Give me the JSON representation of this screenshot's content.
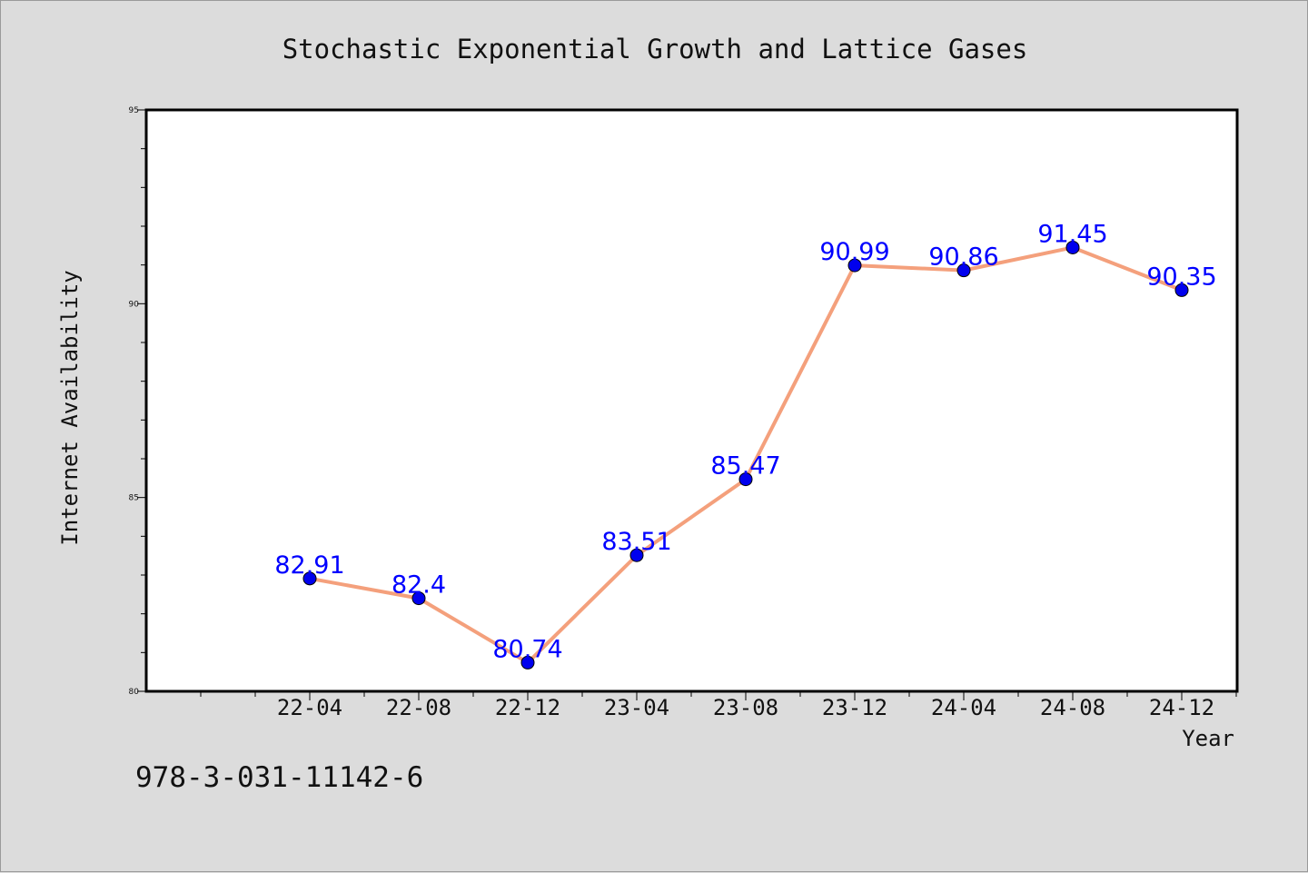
{
  "chart_data": {
    "type": "line",
    "title": "Stochastic Exponential Growth and Lattice Gases",
    "xlabel": "Year",
    "ylabel": "Internet Availability",
    "x": [
      "22-04",
      "22-08",
      "22-12",
      "23-04",
      "23-08",
      "23-12",
      "24-04",
      "24-08",
      "24-12"
    ],
    "series": [
      {
        "values": [
          82.91,
          82.4,
          80.74,
          83.51,
          85.47,
          90.99,
          90.86,
          91.45,
          90.35
        ],
        "data_labels": [
          "82.91",
          "82.4",
          "80.74",
          "83.51",
          "85.47",
          "90.99",
          "90.86",
          "91.45",
          "90.35"
        ]
      }
    ],
    "ylim": [
      80,
      95
    ],
    "y_ticks": [
      80,
      85,
      90,
      95
    ],
    "y_tick_labels": [
      "80",
      "85",
      "90",
      "95"
    ],
    "grid": false,
    "line_color": "#f4a07c",
    "marker_color": "#0000ee",
    "label_color": "#0000ff"
  },
  "footer": {
    "isbn": "978-3-031-11142-6"
  }
}
